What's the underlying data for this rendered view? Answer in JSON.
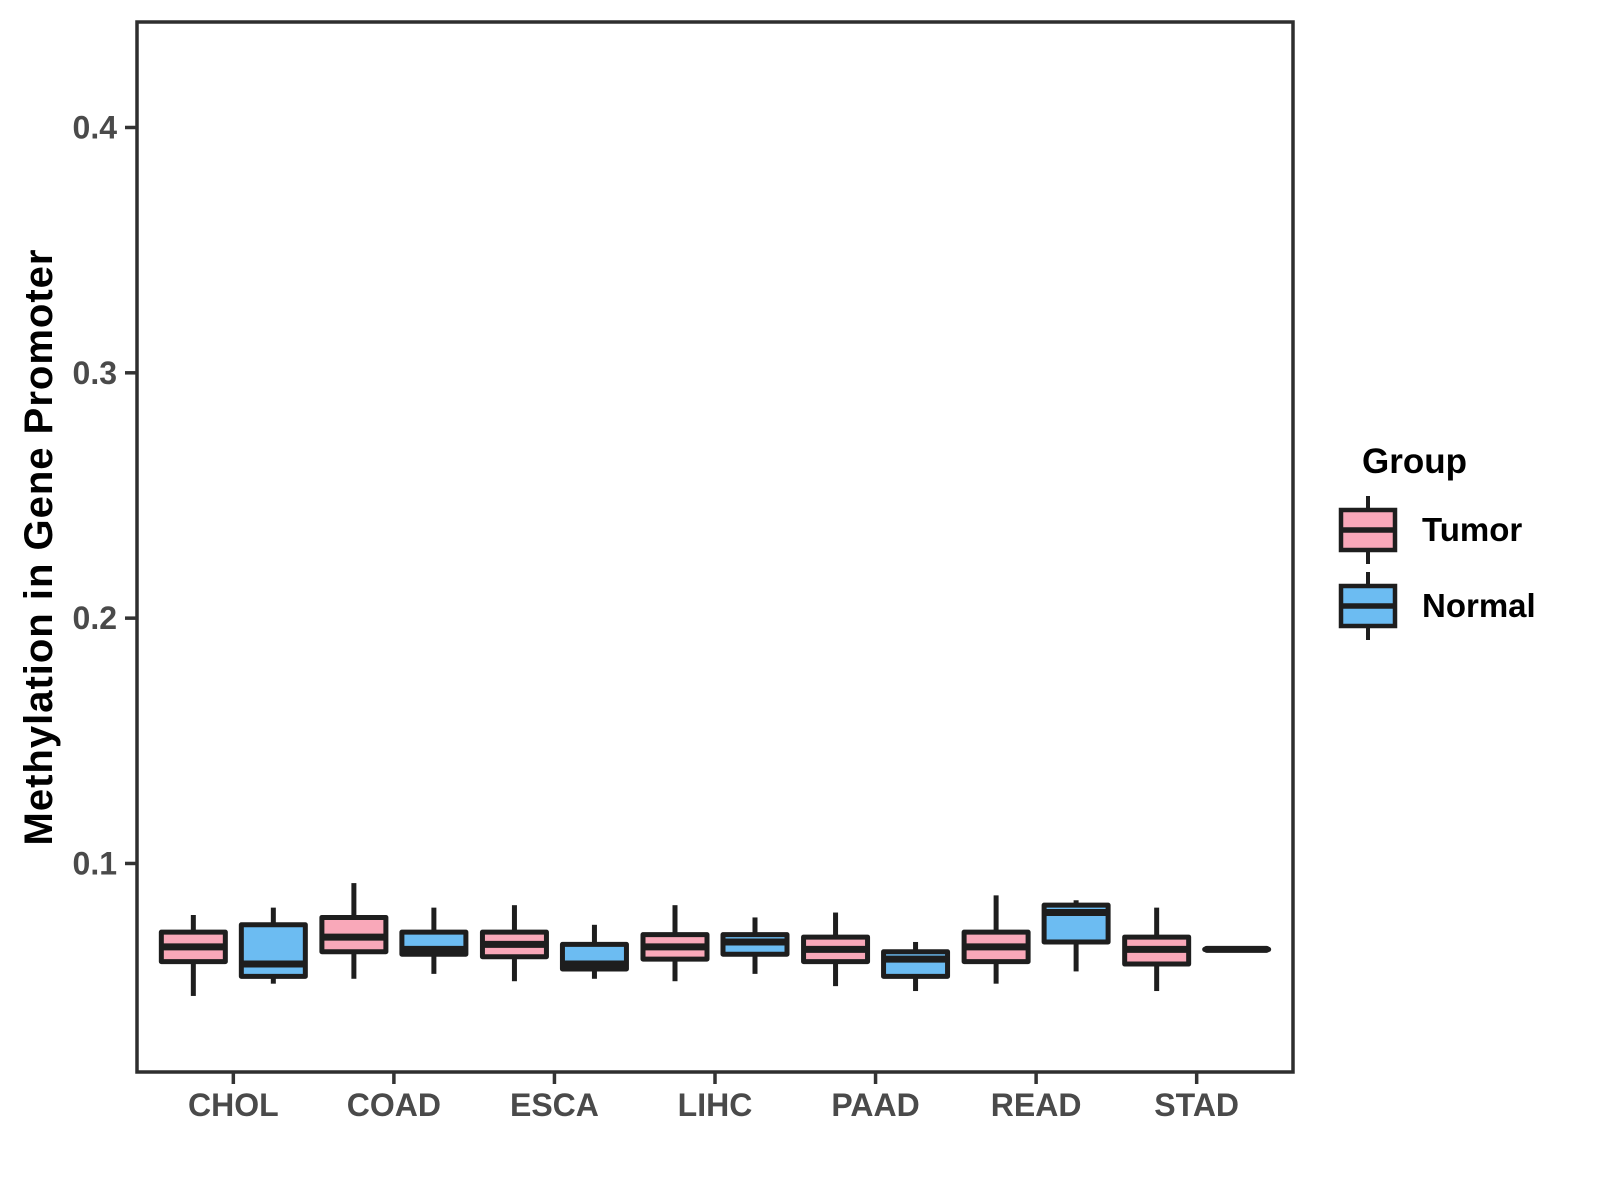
{
  "chart_data": {
    "type": "boxplot",
    "title": "",
    "xlabel": "",
    "ylabel": "Methylation in Gene Promoter",
    "categories": [
      "CHOL",
      "COAD",
      "ESCA",
      "LIHC",
      "PAAD",
      "READ",
      "STAD"
    ],
    "y_ticks": [
      0.1,
      0.2,
      0.3,
      0.4
    ],
    "y_tick_labels": [
      "0.1",
      "0.2",
      "0.3",
      "0.4"
    ],
    "ylim": [
      0.015,
      0.443
    ],
    "grid": "off",
    "legend": {
      "title": "Group",
      "position": "right"
    },
    "colors": {
      "box_border": "#1e1e1e",
      "axis": "#333333",
      "panel_border": "#2e2e2e",
      "axis_text": "#4a4a4a"
    },
    "series": [
      {
        "name": "Tumor",
        "color": "#f9a8b9",
        "stats": [
          {
            "whisker_low": 0.046,
            "q1": 0.06,
            "median": 0.066,
            "q3": 0.072,
            "whisker_high": 0.079
          },
          {
            "whisker_low": 0.053,
            "q1": 0.064,
            "median": 0.07,
            "q3": 0.078,
            "whisker_high": 0.092
          },
          {
            "whisker_low": 0.052,
            "q1": 0.062,
            "median": 0.067,
            "q3": 0.072,
            "whisker_high": 0.083
          },
          {
            "whisker_low": 0.052,
            "q1": 0.061,
            "median": 0.066,
            "q3": 0.071,
            "whisker_high": 0.083
          },
          {
            "whisker_low": 0.05,
            "q1": 0.06,
            "median": 0.065,
            "q3": 0.07,
            "whisker_high": 0.08
          },
          {
            "whisker_low": 0.051,
            "q1": 0.06,
            "median": 0.066,
            "q3": 0.072,
            "whisker_high": 0.087
          },
          {
            "whisker_low": 0.048,
            "q1": 0.059,
            "median": 0.065,
            "q3": 0.07,
            "whisker_high": 0.082
          }
        ]
      },
      {
        "name": "Normal",
        "color": "#6cbcf2",
        "stats": [
          {
            "whisker_low": 0.051,
            "q1": 0.054,
            "median": 0.059,
            "q3": 0.075,
            "whisker_high": 0.082
          },
          {
            "whisker_low": 0.055,
            "q1": 0.063,
            "median": 0.065,
            "q3": 0.072,
            "whisker_high": 0.082
          },
          {
            "whisker_low": 0.053,
            "q1": 0.057,
            "median": 0.059,
            "q3": 0.067,
            "whisker_high": 0.075
          },
          {
            "whisker_low": 0.055,
            "q1": 0.063,
            "median": 0.068,
            "q3": 0.071,
            "whisker_high": 0.078
          },
          {
            "whisker_low": 0.048,
            "q1": 0.054,
            "median": 0.061,
            "q3": 0.064,
            "whisker_high": 0.068
          },
          {
            "whisker_low": 0.056,
            "q1": 0.068,
            "median": 0.08,
            "q3": 0.083,
            "whisker_high": 0.085
          },
          {
            "whisker_low": 0.065,
            "q1": 0.065,
            "median": 0.065,
            "q3": 0.065,
            "whisker_high": 0.065
          }
        ]
      }
    ]
  }
}
